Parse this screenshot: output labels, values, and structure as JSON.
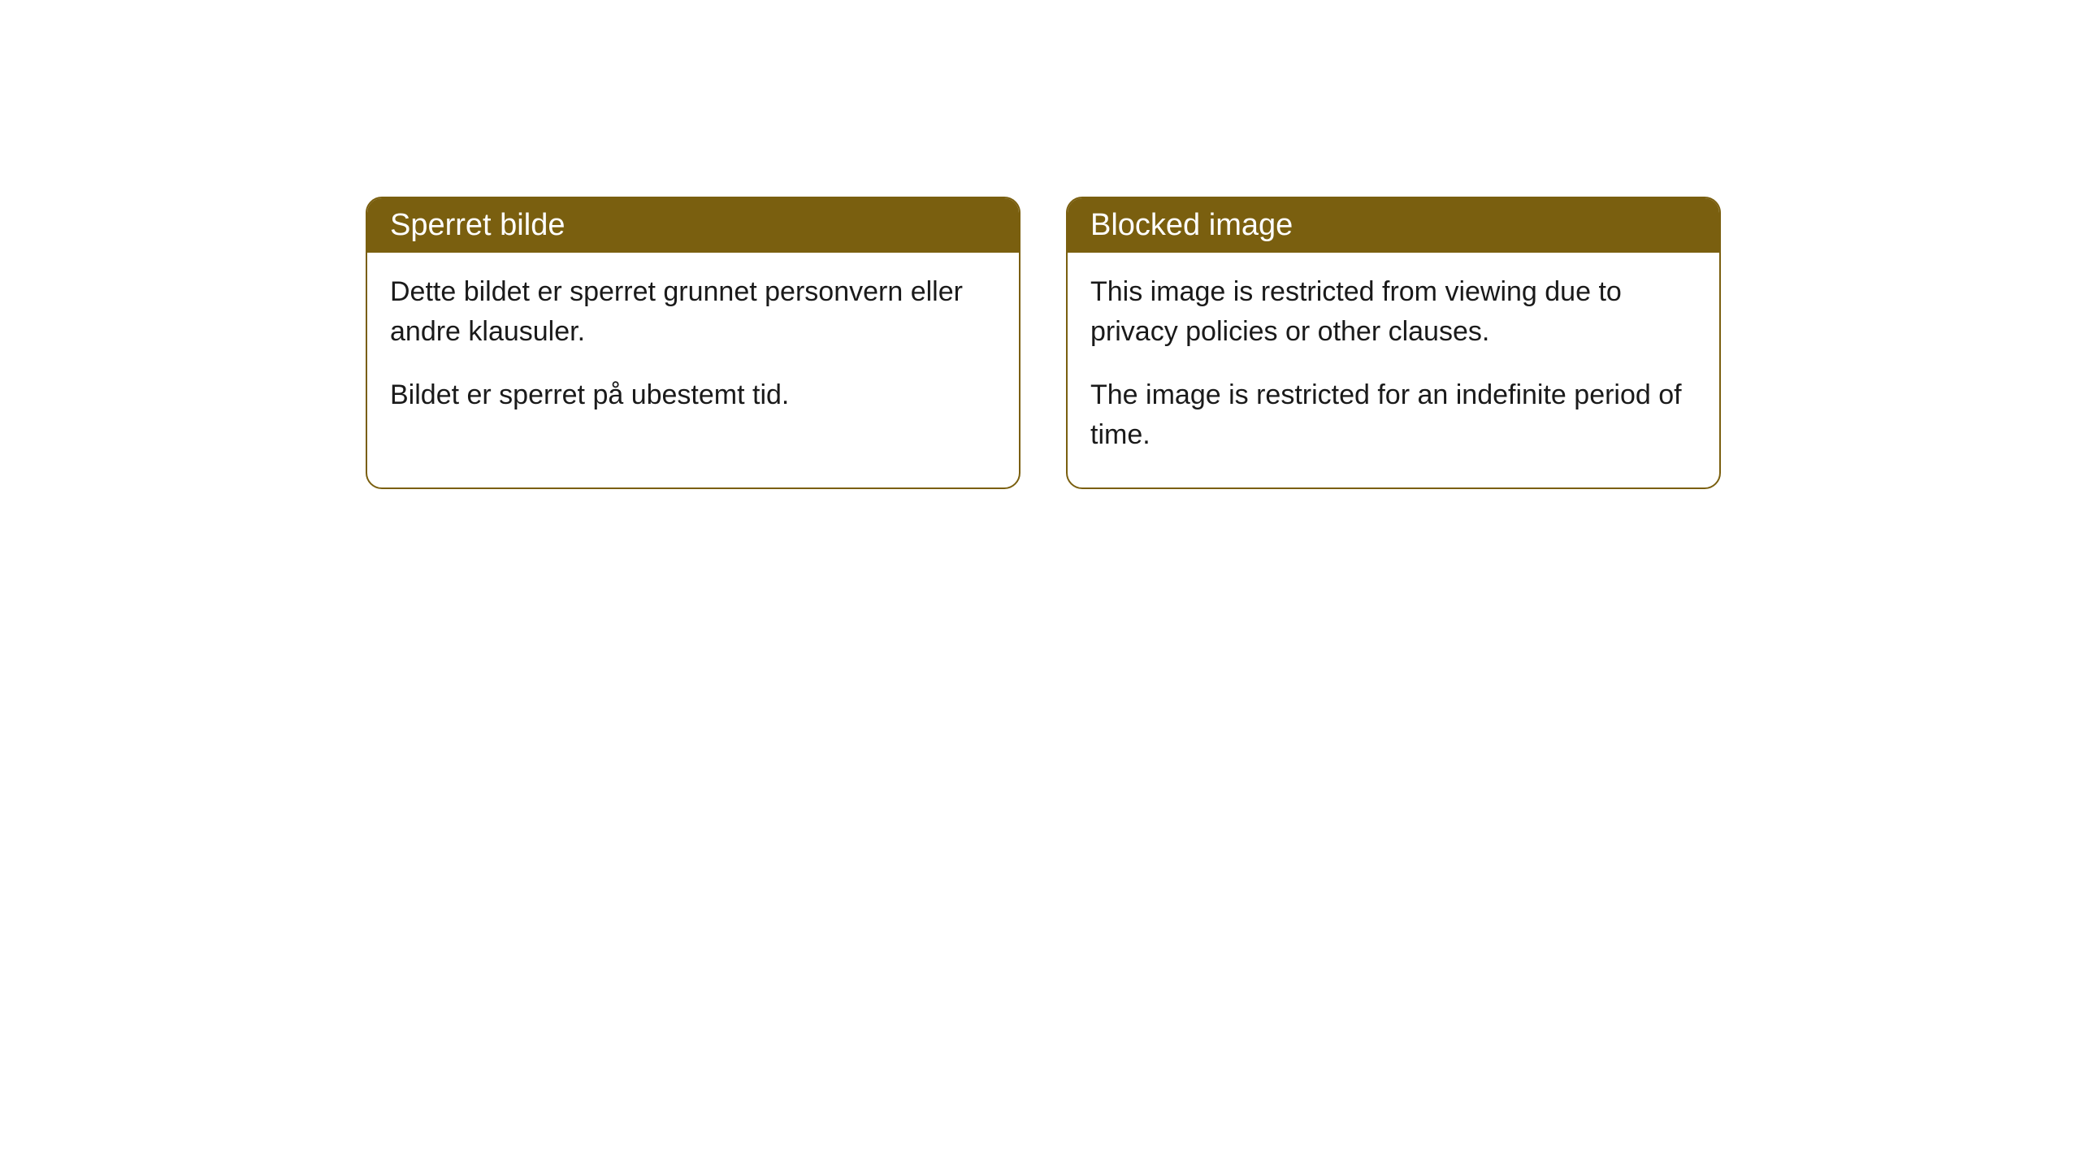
{
  "cards": [
    {
      "title": "Sperret bilde",
      "paragraph1": "Dette bildet er sperret grunnet personvern eller andre klausuler.",
      "paragraph2": "Bildet er sperret på ubestemt tid."
    },
    {
      "title": "Blocked image",
      "paragraph1": "This image is restricted from viewing due to privacy policies or other clauses.",
      "paragraph2": "The image is restricted for an indefinite period of time."
    }
  ],
  "style": {
    "header_background": "#7a5f0f",
    "header_text_color": "#ffffff",
    "border_color": "#7a5f0f",
    "body_text_color": "#1a1a1a",
    "page_background": "#ffffff",
    "border_radius": 20,
    "header_font_size": 38,
    "body_font_size": 34
  }
}
